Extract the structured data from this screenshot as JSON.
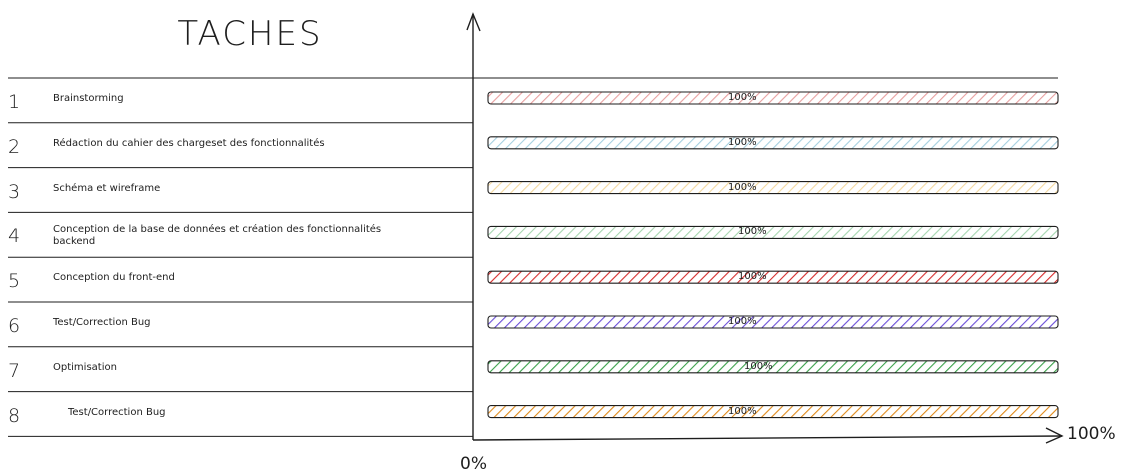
{
  "header": {
    "title": "TACHES"
  },
  "chart_data": {
    "type": "bar",
    "orientation": "horizontal",
    "categories": [
      "Brainstorming",
      "Rédaction du cahier des chargeset des fonctionnalités",
      "Schéma et wireframe",
      "Conception de la base de données et création des fonctionnalités backend",
      "Conception du front-end",
      "Test/Correction Bug",
      "Optimisation",
      "Test/Correction Bug"
    ],
    "row_numbers": [
      "1",
      "2",
      "3",
      "4",
      "5",
      "6",
      "7",
      "8"
    ],
    "values": [
      100,
      100,
      100,
      100,
      100,
      100,
      100,
      100
    ],
    "value_labels": [
      "100%",
      "100%",
      "100%",
      "100%",
      "100%",
      "100%",
      "100%",
      "100%"
    ],
    "colors": [
      "#e8a0a0",
      "#a5d0e0",
      "#f5d9a0",
      "#a6d6b0",
      "#d62d2d",
      "#6b4fd8",
      "#3aa04a",
      "#e08a1a"
    ],
    "xlim": [
      0,
      100
    ],
    "x_axis_start_label": "0%",
    "x_axis_end_label": "100%"
  }
}
